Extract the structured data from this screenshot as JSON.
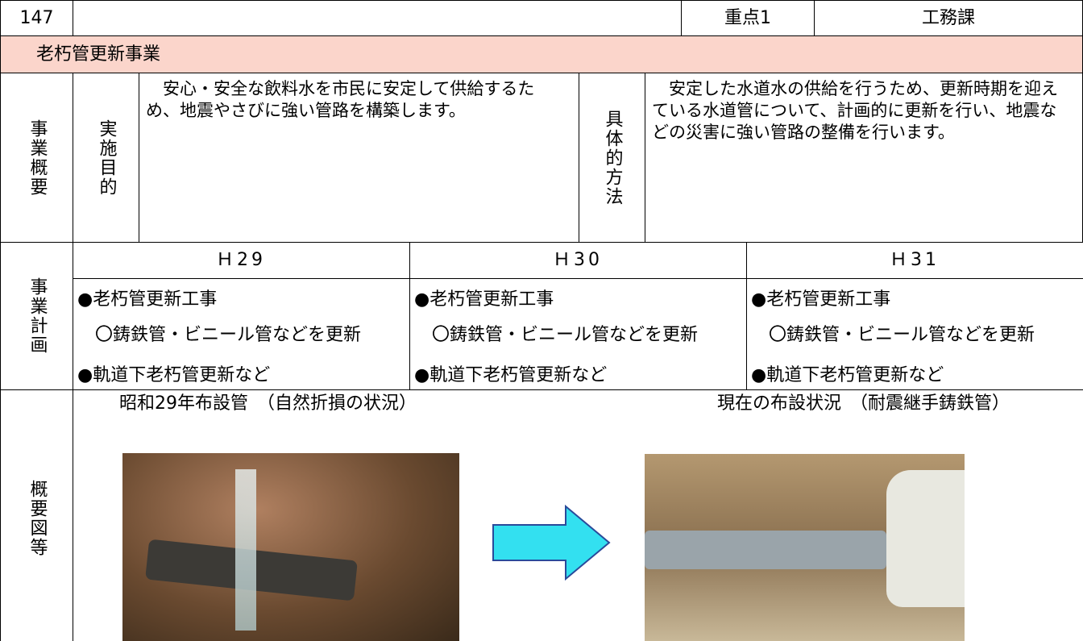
{
  "header": {
    "number": "147",
    "priority": "重点1",
    "department": "工務課"
  },
  "title": "老朽管更新事業",
  "overview": {
    "label": "事業概要",
    "purpose_label": "実施目的",
    "purpose": "安心・安全な飲料水を市民に安定して供給するため、地震やさびに強い管路を構築します。",
    "method_label": "具体的方法",
    "method": "安定した水道水の供給を行うため、更新時期を迎えている水道管について、計画的に更新を行い、地震などの災害に強い管路の整備を行います。"
  },
  "plan": {
    "label": "事業計画",
    "years": [
      {
        "year": "Ｈ29",
        "items": [
          "●老朽管更新工事",
          "〇鋳鉄管・ビニール管などを更新",
          "●軌道下老朽管更新など"
        ]
      },
      {
        "year": "Ｈ30",
        "items": [
          "●老朽管更新工事",
          "〇鋳鉄管・ビニール管などを更新",
          "●軌道下老朽管更新など"
        ]
      },
      {
        "year": "Ｈ31",
        "items": [
          "●老朽管更新工事",
          "〇鋳鉄管・ビニール管などを更新",
          "●軌道下老朽管更新など"
        ]
      }
    ]
  },
  "figures": {
    "label": "概要図等",
    "captions": [
      "昭和29年布設管　（自然折損の状況）",
      "現在の布設状況　（耐震継手鋳鉄管）"
    ]
  }
}
